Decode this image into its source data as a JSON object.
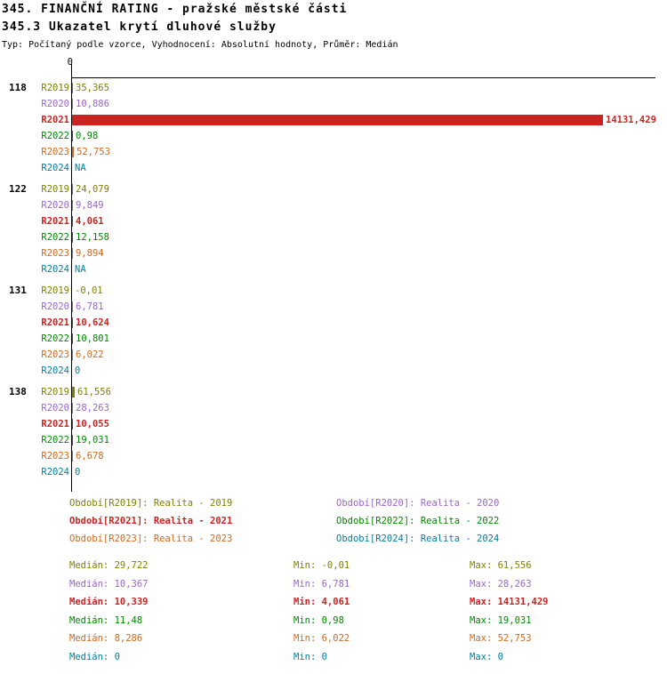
{
  "chart_data": {
    "type": "bar",
    "orientation": "horizontal",
    "title": "345. FINANČNÍ RATING - pražské městské části",
    "subtitle": "345.3 Ukazatel krytí dluhové služby",
    "meta": "Typ: Počítaný podle vzorce, Vyhodnocení: Absolutní hodnoty, Průměr: Medián",
    "value_axis": {
      "zero_label": "0",
      "min": 0,
      "max": 14131.429
    },
    "stat_labels": {
      "median": "Medián",
      "min": "Min",
      "max": "Max"
    },
    "series": [
      {
        "id": "R2019",
        "label": "R2019",
        "color": "#808000",
        "bold": false,
        "legend": "Období[R2019]: Realita - 2019",
        "median": "29,722",
        "min": "-0,01",
        "max": "61,556"
      },
      {
        "id": "R2020",
        "label": "R2020",
        "color": "#9966CC",
        "bold": false,
        "legend": "Období[R2020]: Realita - 2020",
        "median": "10,367",
        "min": "6,781",
        "max": "28,263"
      },
      {
        "id": "R2021",
        "label": "R2021",
        "color": "#CC2222",
        "bold": true,
        "legend": "Období[R2021]: Realita - 2021",
        "median": "10,339",
        "min": "4,061",
        "max": "14131,429"
      },
      {
        "id": "R2022",
        "label": "R2022",
        "color": "#008800",
        "bold": false,
        "legend": "Období[R2022]: Realita - 2022",
        "median": "11,48",
        "min": "0,98",
        "max": "19,031"
      },
      {
        "id": "R2023",
        "label": "R2023",
        "color": "#D2691E",
        "bold": false,
        "legend": "Období[R2023]: Realita - 2023",
        "median": "8,286",
        "min": "6,022",
        "max": "52,753"
      },
      {
        "id": "R2024",
        "label": "R2024",
        "color": "#0080A0",
        "bold": false,
        "legend": "Období[R2024]: Realita - 2024",
        "median": "0",
        "min": "0",
        "max": "0"
      }
    ],
    "groups": [
      {
        "label": "118",
        "values": [
          {
            "series": "R2019",
            "value": 35.365,
            "text": "35,365"
          },
          {
            "series": "R2020",
            "value": 10.886,
            "text": "10,886"
          },
          {
            "series": "R2021",
            "value": 14131.429,
            "text": "14131,429"
          },
          {
            "series": "R2022",
            "value": 0.98,
            "text": "0,98"
          },
          {
            "series": "R2023",
            "value": 52.753,
            "text": "52,753"
          },
          {
            "series": "R2024",
            "value": null,
            "text": "NA"
          }
        ]
      },
      {
        "label": "122",
        "values": [
          {
            "series": "R2019",
            "value": 24.079,
            "text": "24,079"
          },
          {
            "series": "R2020",
            "value": 9.849,
            "text": "9,849"
          },
          {
            "series": "R2021",
            "value": 4.061,
            "text": "4,061"
          },
          {
            "series": "R2022",
            "value": 12.158,
            "text": "12,158"
          },
          {
            "series": "R2023",
            "value": 9.894,
            "text": "9,894"
          },
          {
            "series": "R2024",
            "value": null,
            "text": "NA"
          }
        ]
      },
      {
        "label": "131",
        "values": [
          {
            "series": "R2019",
            "value": -0.01,
            "text": "-0,01"
          },
          {
            "series": "R2020",
            "value": 6.781,
            "text": "6,781"
          },
          {
            "series": "R2021",
            "value": 10.624,
            "text": "10,624"
          },
          {
            "series": "R2022",
            "value": 10.801,
            "text": "10,801"
          },
          {
            "series": "R2023",
            "value": 6.022,
            "text": "6,022"
          },
          {
            "series": "R2024",
            "value": 0,
            "text": "0"
          }
        ]
      },
      {
        "label": "138",
        "values": [
          {
            "series": "R2019",
            "value": 61.556,
            "text": "61,556"
          },
          {
            "series": "R2020",
            "value": 28.263,
            "text": "28,263"
          },
          {
            "series": "R2021",
            "value": 10.055,
            "text": "10,055"
          },
          {
            "series": "R2022",
            "value": 19.031,
            "text": "19,031"
          },
          {
            "series": "R2023",
            "value": 6.678,
            "text": "6,678"
          },
          {
            "series": "R2024",
            "value": 0,
            "text": "0"
          }
        ]
      }
    ],
    "legend_position": "bottom",
    "grid": false
  }
}
